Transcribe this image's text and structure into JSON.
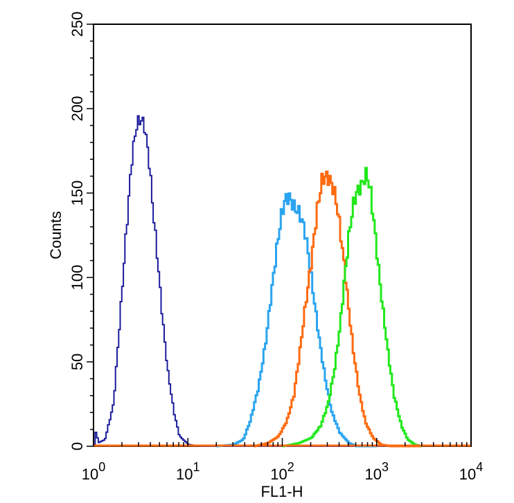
{
  "chart_data": {
    "type": "line",
    "xlabel": "FL1-H",
    "ylabel": "Counts",
    "x_scale": "log",
    "xlim": [
      1,
      10000
    ],
    "ylim": [
      0,
      250
    ],
    "x_ticks": [
      {
        "base": "10",
        "exp": "0",
        "value": 1
      },
      {
        "base": "10",
        "exp": "1",
        "value": 10
      },
      {
        "base": "10",
        "exp": "2",
        "value": 100
      },
      {
        "base": "10",
        "exp": "3",
        "value": 1000
      },
      {
        "base": "10",
        "exp": "4",
        "value": 10000
      }
    ],
    "y_ticks": [
      "0",
      "50",
      "100",
      "150",
      "200",
      "250"
    ],
    "grid": false,
    "series": [
      {
        "color": "#1a1a9c",
        "points": [
          [
            1.0,
            1
          ],
          [
            1.05,
            10
          ],
          [
            1.1,
            2
          ],
          [
            1.3,
            4
          ],
          [
            1.6,
            25
          ],
          [
            1.9,
            80
          ],
          [
            2.2,
            130
          ],
          [
            2.5,
            170
          ],
          [
            2.8,
            190
          ],
          [
            3.1,
            194
          ],
          [
            3.4,
            190
          ],
          [
            3.8,
            170
          ],
          [
            4.2,
            140
          ],
          [
            4.7,
            110
          ],
          [
            5.3,
            75
          ],
          [
            6.0,
            45
          ],
          [
            7.0,
            20
          ],
          [
            8.0,
            6
          ],
          [
            10,
            1
          ],
          [
            14,
            0
          ],
          [
            30,
            0
          ],
          [
            60,
            0
          ],
          [
            100,
            0
          ],
          [
            300,
            0
          ],
          [
            1000,
            0
          ],
          [
            3000,
            0
          ]
        ]
      },
      {
        "color": "#2aa4f0",
        "points": [
          [
            20,
            0
          ],
          [
            30,
            1
          ],
          [
            38,
            4
          ],
          [
            45,
            15
          ],
          [
            55,
            35
          ],
          [
            65,
            60
          ],
          [
            75,
            90
          ],
          [
            85,
            115
          ],
          [
            95,
            135
          ],
          [
            105,
            146
          ],
          [
            115,
            148
          ],
          [
            130,
            142
          ],
          [
            150,
            138
          ],
          [
            170,
            128
          ],
          [
            190,
            110
          ],
          [
            210,
            90
          ],
          [
            240,
            65
          ],
          [
            280,
            40
          ],
          [
            330,
            20
          ],
          [
            400,
            8
          ],
          [
            500,
            2
          ],
          [
            600,
            0
          ],
          [
            1000,
            0
          ]
        ]
      },
      {
        "color": "#ff6a10",
        "points": [
          [
            50,
            0
          ],
          [
            70,
            2
          ],
          [
            90,
            6
          ],
          [
            110,
            15
          ],
          [
            130,
            30
          ],
          [
            150,
            55
          ],
          [
            170,
            80
          ],
          [
            200,
            110
          ],
          [
            230,
            140
          ],
          [
            260,
            158
          ],
          [
            290,
            160
          ],
          [
            320,
            157
          ],
          [
            360,
            148
          ],
          [
            400,
            130
          ],
          [
            450,
            105
          ],
          [
            500,
            80
          ],
          [
            560,
            55
          ],
          [
            650,
            30
          ],
          [
            750,
            14
          ],
          [
            900,
            5
          ],
          [
            1100,
            1
          ],
          [
            1400,
            0
          ],
          [
            3000,
            0
          ]
        ]
      },
      {
        "color": "#22e81c",
        "points": [
          [
            100,
            0
          ],
          [
            150,
            2
          ],
          [
            200,
            5
          ],
          [
            250,
            12
          ],
          [
            300,
            25
          ],
          [
            350,
            45
          ],
          [
            400,
            70
          ],
          [
            450,
            100
          ],
          [
            500,
            125
          ],
          [
            550,
            142
          ],
          [
            600,
            150
          ],
          [
            700,
            156
          ],
          [
            770,
            162
          ],
          [
            850,
            150
          ],
          [
            950,
            125
          ],
          [
            1050,
            100
          ],
          [
            1150,
            80
          ],
          [
            1300,
            55
          ],
          [
            1500,
            30
          ],
          [
            1800,
            12
          ],
          [
            2100,
            4
          ],
          [
            2500,
            1
          ],
          [
            3000,
            0
          ]
        ]
      }
    ]
  }
}
